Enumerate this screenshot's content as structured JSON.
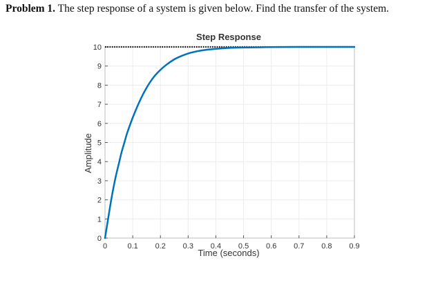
{
  "problem": {
    "label": "Problem 1.",
    "text": "The step response of a system is given below. Find the transfer of the system."
  },
  "chart_data": {
    "type": "line",
    "title": "Step Response",
    "xlabel": "Time (seconds)",
    "ylabel": "Amplitude",
    "xlim": [
      0,
      0.9
    ],
    "ylim": [
      0,
      10
    ],
    "xticks": [
      "0",
      "0.1",
      "0.2",
      "0.3",
      "0.4",
      "0.5",
      "0.6",
      "0.7",
      "0.8",
      "0.9"
    ],
    "yticks": [
      "0",
      "1",
      "2",
      "3",
      "4",
      "5",
      "6",
      "7",
      "8",
      "9",
      "10"
    ],
    "grid": true,
    "reference_line": {
      "y": 10,
      "style": "dotted",
      "color": "#000000"
    },
    "series": [
      {
        "color": "#0072BD",
        "x": [
          0,
          0.01,
          0.02,
          0.03,
          0.04,
          0.05,
          0.06,
          0.07,
          0.08,
          0.1,
          0.12,
          0.14,
          0.16,
          0.18,
          0.2,
          0.22,
          0.25,
          0.28,
          0.31,
          0.35,
          0.4,
          0.45,
          0.5,
          0.6,
          0.7,
          0.8,
          0.9
        ],
        "values": [
          0,
          0.9,
          1.8,
          2.6,
          3.3,
          3.9,
          4.5,
          5.0,
          5.5,
          6.3,
          7.0,
          7.6,
          8.1,
          8.5,
          8.8,
          9.05,
          9.35,
          9.55,
          9.7,
          9.82,
          9.9,
          9.95,
          9.97,
          9.99,
          10.0,
          10.0,
          10.0
        ]
      }
    ]
  }
}
